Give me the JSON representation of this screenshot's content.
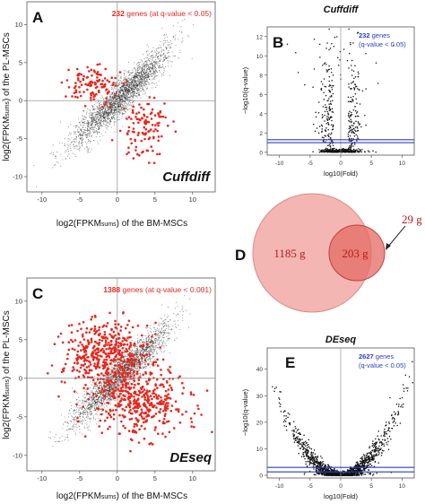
{
  "chart_data": [
    {
      "panel": "A",
      "type": "scatter",
      "method_label": "Cuffdiff",
      "annotation": {
        "count": "232",
        "text": " genes (at q-value < 0.05)"
      },
      "xlabel_parts": [
        "log2(FPKM",
        "sums",
        ") of the BM-MSCs"
      ],
      "ylabel_parts": [
        "log2(FPKM",
        "sums",
        ") of the PL-MSCs"
      ],
      "xlim": [
        -12,
        13
      ],
      "ylim": [
        -12,
        13
      ],
      "xticks": [
        -10,
        -5,
        0,
        5,
        10
      ],
      "yticks": [
        -10,
        -5,
        0,
        5,
        10
      ],
      "colors": {
        "background": "#222222",
        "significant": "#e8261c"
      },
      "series": [
        {
          "name": "all genes",
          "n": 2600,
          "center": [
            0.5,
            0.5
          ],
          "spread": [
            5.5,
            0.85
          ]
        },
        {
          "name": "significant",
          "n": 232,
          "clusters": [
            [
              -3.5,
              2.0,
              1.6,
              1.3
            ],
            [
              3.5,
              -3.5,
              1.8,
              2.0
            ]
          ]
        }
      ]
    },
    {
      "panel": "B",
      "type": "scatter",
      "title": "Cuffdiff",
      "annotation": {
        "count": "232",
        "text": " genes",
        "subtext": "(q-value < 0.05)"
      },
      "xlabel": "log10(Fold)",
      "ylabel": "−log10(q-value)",
      "xlim": [
        -12,
        12
      ],
      "ylim": [
        -0.3,
        13
      ],
      "xticks": [
        -10,
        -5,
        0,
        5,
        10
      ],
      "yticks": [
        0,
        2,
        4,
        6,
        8,
        10,
        12
      ],
      "threshold_lines": [
        1.0,
        1.3
      ],
      "colors": {
        "points": "#111111",
        "threshold": "#2a3fbf"
      }
    },
    {
      "panel": "C",
      "type": "scatter",
      "method_label": "DEseq",
      "annotation": {
        "count": "1388",
        "text": " genes (at q-value < 0.001)"
      },
      "xlabel_parts": [
        "log2(FPKM",
        "sums",
        ") of the BM-MSCs"
      ],
      "ylabel_parts": [
        "log2(FPKM",
        "sums",
        ") of the PL-MSCs"
      ],
      "xlim": [
        -12,
        13
      ],
      "ylim": [
        -12,
        13
      ],
      "xticks": [
        -10,
        -5,
        0,
        5,
        10
      ],
      "yticks": [
        -10,
        -5,
        0,
        5,
        10
      ],
      "colors": {
        "background": "#222222",
        "significant": "#e8261c"
      },
      "series": [
        {
          "name": "all genes",
          "n": 2600,
          "center": [
            0.5,
            0.5
          ],
          "spread": [
            5.5,
            0.85
          ]
        },
        {
          "name": "significant",
          "n": 1388,
          "clusters": [
            [
              -1.5,
              3.0,
              2.8,
              2.0
            ],
            [
              3.0,
              -3.0,
              3.0,
              2.3
            ]
          ]
        }
      ]
    },
    {
      "panel": "D",
      "type": "venn",
      "sets": [
        {
          "label": "1185 g",
          "color": "#f2a9a6"
        },
        {
          "label": "29 g",
          "color": "#e66a63"
        }
      ],
      "intersection_label": "203 g"
    },
    {
      "panel": "E",
      "type": "scatter",
      "title": "DEseq",
      "annotation": {
        "count": "2627",
        "text": " genes",
        "subtext": "(q-value < 0.05)"
      },
      "xlabel": "log10(Fold)",
      "ylabel": "−log10(q-value)",
      "xlim": [
        -12,
        12
      ],
      "ylim": [
        -1,
        48
      ],
      "xticks": [
        -10,
        -5,
        0,
        5,
        10
      ],
      "yticks": [
        0,
        10,
        20,
        30,
        40
      ],
      "threshold_lines": [
        1.3,
        3.0
      ],
      "colors": {
        "points": "#111111",
        "threshold": "#2a3fbf"
      }
    }
  ],
  "labels": {
    "A": "A",
    "B": "B",
    "C": "C",
    "D": "D",
    "E": "E",
    "cuffdiff_title": "Cuffdiff",
    "deseq_title": "DEseq"
  }
}
